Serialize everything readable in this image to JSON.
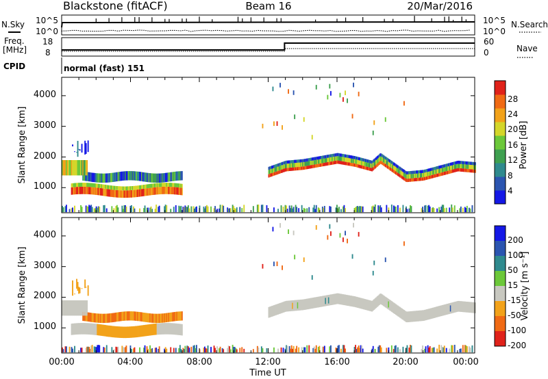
{
  "header": {
    "station": "Blackstone (fitACF)",
    "beam": "Beam 16",
    "date": "20/Mar/2016"
  },
  "top_panels": {
    "nsky_label": "N.Sky",
    "nsky_hi": "10^5",
    "nsky_lo": "10^0",
    "nsearch_hi": "10^5",
    "nsearch_lo": "10^0",
    "nsearch_label": "N.Search",
    "freq_label_1": "Freq.",
    "freq_label_2": "[MHz]",
    "freq_ticks": [
      "18",
      "8"
    ],
    "nave_ticks": [
      "60",
      "0"
    ],
    "nave_label": "Nave",
    "cpid_label": "CPID",
    "cpid_value": "normal (fast) 151"
  },
  "colors": {
    "power": [
      "#1418e6",
      "#2b55b0",
      "#2f8a8e",
      "#3fa050",
      "#6cc83a",
      "#d4d62a",
      "#f2a21a",
      "#f06a14",
      "#e0221a"
    ],
    "velocity": [
      "#1418e6",
      "#2b55b0",
      "#2f8a8e",
      "#6cc83a",
      "#c8c8c0",
      "#f2a21a",
      "#f06a14",
      "#e0221a"
    ],
    "ground": "#c8c8c0"
  },
  "chart_data": [
    {
      "type": "heatmap",
      "quantity": "power",
      "ylabel": "Slant Range [km]",
      "yticks": [
        "1000",
        "2000",
        "3000",
        "4000"
      ],
      "ylim": [
        180,
        4600
      ],
      "xlim": [
        0,
        24
      ],
      "colorbar_label": "Power [dB]",
      "colorbar_ticks": [
        "4",
        "8",
        "12",
        "16",
        "20",
        "24",
        "28"
      ],
      "colorbar_range": [
        0,
        32
      ]
    },
    {
      "type": "heatmap",
      "quantity": "velocity",
      "ylabel": "Slant Range [km]",
      "yticks": [
        "1000",
        "2000",
        "3000",
        "4000"
      ],
      "ylim": [
        180,
        4600
      ],
      "xlim": [
        0,
        24
      ],
      "xlabel": "Time UT",
      "xticks": [
        "00:00",
        "04:00",
        "08:00",
        "12:00",
        "16:00",
        "20:00",
        "00:00"
      ],
      "colorbar_label": "Velocity [m s⁻¹]",
      "colorbar_ticks": [
        "200",
        "100",
        "50",
        "15",
        "-15",
        "-50",
        "-100",
        "-200"
      ]
    }
  ]
}
